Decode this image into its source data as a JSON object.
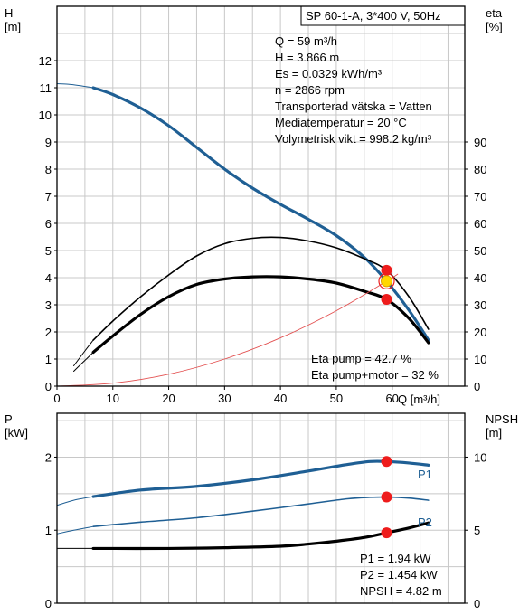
{
  "chart_data": [
    {
      "type": "line",
      "title": "SP 60-1-A, 3*400 V, 50Hz",
      "xlabel": "Q [m³/h]",
      "ylabel_left": [
        "H",
        "[m]"
      ],
      "ylabel_right": [
        "eta",
        "[%]"
      ],
      "xlim": [
        0,
        73
      ],
      "ylim_left": [
        0,
        14
      ],
      "ylim_right": [
        0,
        140
      ],
      "xticks": [
        "0",
        "10",
        "20",
        "30",
        "40",
        "50",
        "60"
      ],
      "yticks_left": [
        "0",
        "1",
        "2",
        "3",
        "4",
        "5",
        "6",
        "7",
        "8",
        "9",
        "10",
        "11",
        "12"
      ],
      "yticks_right": [
        "0",
        "10",
        "20",
        "30",
        "40",
        "50",
        "60",
        "70",
        "80",
        "90"
      ],
      "grid": true,
      "info_lines": [
        "Q = 59 m³/h",
        "H = 3.866 m",
        "Es = 0.0329 kWh/m³",
        "n = 2866 rpm",
        "Transporterad vätska = Vatten",
        "Mediatemperatur = 20 °C",
        "Volymetrisk vikt = 998.2 kg/m³"
      ],
      "eta_lines": [
        "Eta pump = 42.7 %",
        "Eta pump+motor = 32 %"
      ],
      "series": [
        {
          "key": "head",
          "axis": "left",
          "color": "#1f5f94",
          "x": [
            6.5,
            10,
            15,
            20,
            25,
            30,
            35,
            40,
            45,
            50,
            55,
            59,
            63,
            66.5
          ],
          "y": [
            11.0,
            10.75,
            10.25,
            9.6,
            8.8,
            8.0,
            7.3,
            6.7,
            6.15,
            5.55,
            4.75,
            3.87,
            2.8,
            1.7
          ]
        },
        {
          "key": "head_ext",
          "axis": "left",
          "color": "#1f5f94",
          "x": [
            0,
            2,
            4,
            6.5
          ],
          "y": [
            11.15,
            11.13,
            11.08,
            11.0
          ]
        },
        {
          "key": "eta_pump",
          "axis": "right",
          "color": "#000000",
          "x": [
            6.5,
            10,
            15,
            20,
            25,
            30,
            35,
            40,
            45,
            50,
            55,
            59,
            63,
            66.5
          ],
          "y": [
            17,
            24,
            33,
            41,
            48,
            52.5,
            54.5,
            54.8,
            53.5,
            51,
            47,
            42.7,
            33,
            21
          ]
        },
        {
          "key": "eta_pump_ext",
          "axis": "right",
          "color": "#000000",
          "x": [
            3,
            5,
            6.5
          ],
          "y": [
            7.5,
            13,
            17
          ]
        },
        {
          "key": "eta_total",
          "axis": "right",
          "color": "#000000",
          "x": [
            6.5,
            10,
            15,
            20,
            25,
            30,
            35,
            40,
            45,
            50,
            55,
            59,
            63,
            66.5
          ],
          "y": [
            12.5,
            18.5,
            26.5,
            33,
            37.5,
            39.5,
            40.3,
            40.3,
            39.5,
            38,
            35,
            32,
            25,
            16
          ]
        },
        {
          "key": "eta_total_ext",
          "axis": "right",
          "color": "#000000",
          "x": [
            3,
            5,
            6.5
          ],
          "y": [
            5.5,
            9.5,
            12.5
          ]
        },
        {
          "key": "system_curve",
          "axis": "left",
          "color": "#e35050",
          "x": [
            0,
            10,
            20,
            30,
            40,
            50,
            59,
            61
          ],
          "y": [
            0,
            0.11,
            0.44,
            1.0,
            1.78,
            2.78,
            3.87,
            4.13
          ]
        }
      ],
      "markers": [
        {
          "axis": "right",
          "x": 59,
          "y": 42.7,
          "color": "#ee1c1c"
        },
        {
          "axis": "right",
          "x": 59,
          "y": 32,
          "color": "#ee1c1c"
        },
        {
          "axis": "left",
          "x": 59,
          "y": 3.87,
          "color": "#ffd800"
        }
      ]
    },
    {
      "type": "line",
      "ylabel_left": [
        "P",
        "[kW]"
      ],
      "ylabel_right": [
        "NPSH",
        "[m]"
      ],
      "xlim": [
        0,
        73
      ],
      "ylim_left": [
        0,
        2.6
      ],
      "ylim_right": [
        0,
        13
      ],
      "yticks_left": [
        "0",
        "1",
        "2"
      ],
      "yticks_right": [
        "0",
        "5",
        "10"
      ],
      "grid": true,
      "labels": [
        "P1",
        "P2"
      ],
      "value_lines": [
        "P1 = 1.94 kW",
        "P2 = 1.454 kW",
        "NPSH = 4.82 m"
      ],
      "series": [
        {
          "key": "p1",
          "axis": "left",
          "color": "#1f5f94",
          "x": [
            6.5,
            15,
            25,
            35,
            45,
            52,
            56,
            59,
            63,
            66.5
          ],
          "y": [
            1.46,
            1.55,
            1.6,
            1.69,
            1.81,
            1.9,
            1.94,
            1.94,
            1.92,
            1.89
          ]
        },
        {
          "key": "p1_ext",
          "axis": "left",
          "color": "#1f5f94",
          "x": [
            0,
            3,
            6.5
          ],
          "y": [
            1.34,
            1.41,
            1.46
          ]
        },
        {
          "key": "p2",
          "axis": "left",
          "color": "#1f5f94",
          "x": [
            6.5,
            15,
            25,
            35,
            45,
            52,
            56,
            59,
            63,
            66.5
          ],
          "y": [
            1.05,
            1.11,
            1.17,
            1.26,
            1.36,
            1.43,
            1.45,
            1.454,
            1.44,
            1.41
          ]
        },
        {
          "key": "p2_ext",
          "axis": "left",
          "color": "#1f5f94",
          "x": [
            0,
            3,
            6.5
          ],
          "y": [
            0.95,
            1.0,
            1.05
          ]
        },
        {
          "key": "npsh",
          "axis": "right",
          "color": "#000000",
          "x": [
            6.5,
            20,
            30,
            40,
            45,
            50,
            55,
            59,
            63,
            66.5
          ],
          "y": [
            3.75,
            3.75,
            3.8,
            3.9,
            4.05,
            4.25,
            4.5,
            4.82,
            5.15,
            5.5
          ]
        },
        {
          "key": "npsh_ext",
          "axis": "right",
          "color": "#000000",
          "x": [
            0,
            6.5
          ],
          "y": [
            3.75,
            3.75
          ]
        }
      ],
      "markers": [
        {
          "axis": "left",
          "x": 59,
          "y": 1.94,
          "color": "#ee1c1c"
        },
        {
          "axis": "left",
          "x": 59,
          "y": 1.454,
          "color": "#ee1c1c"
        },
        {
          "axis": "right",
          "x": 59,
          "y": 4.82,
          "color": "#ee1c1c"
        }
      ]
    }
  ]
}
